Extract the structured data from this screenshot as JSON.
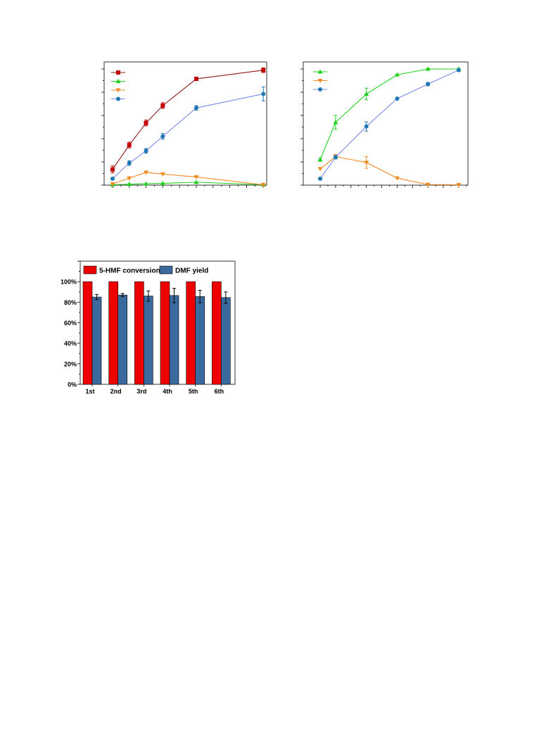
{
  "chart_data": [
    {
      "type": "line",
      "title": "",
      "xlabel": "",
      "ylabel": "",
      "x": [
        0,
        1,
        2,
        3,
        5,
        9
      ],
      "xlim": [
        -0.5,
        9.2
      ],
      "ylim": [
        0,
        100
      ],
      "legend": "top-left",
      "series": [
        {
          "color": "#c00000",
          "line_color": "#8b1a1a",
          "marker": "square",
          "values": [
            13.5,
            34.5,
            53.5,
            68.5,
            91.5,
            99
          ],
          "errors": [
            3,
            2.5,
            2.5,
            2.5,
            1,
            2
          ]
        },
        {
          "color": "#1fd01f",
          "line_color": "#1fd01f",
          "marker": "triangle-up",
          "values": [
            0.3,
            0.8,
            1.2,
            1.5,
            2.5,
            0.3
          ],
          "errors": [
            0,
            0,
            0,
            0,
            0,
            0
          ]
        },
        {
          "color": "#f08a24",
          "line_color": "#f08a24",
          "marker": "triangle-down",
          "values": [
            1,
            6,
            11,
            9.5,
            7,
            0.3
          ],
          "errors": [
            0,
            0,
            0,
            0,
            0,
            0
          ]
        },
        {
          "color": "#1f77b4",
          "line_color": "#7a8ee8",
          "marker": "circle",
          "values": [
            5.5,
            19,
            29.5,
            42,
            66.5,
            78.5
          ],
          "errors": [
            0.5,
            2,
            2,
            2.5,
            2,
            6
          ]
        }
      ]
    },
    {
      "type": "line",
      "title": "",
      "xlabel": "",
      "ylabel": "",
      "x": [
        0,
        0.5,
        1.5,
        2.5,
        3.5,
        4.5
      ],
      "xlim": [
        -0.55,
        4.8
      ],
      "ylim": [
        0,
        100
      ],
      "legend": "top-left",
      "series": [
        {
          "color": "#1fd01f",
          "line_color": "#1fd01f",
          "marker": "triangle-up",
          "values": [
            22,
            54,
            78.5,
            95,
            100,
            100
          ],
          "errors": [
            1.5,
            6,
            5,
            0.5,
            0.5,
            0.5
          ]
        },
        {
          "color": "#f08a24",
          "line_color": "#f08a24",
          "marker": "triangle-down",
          "values": [
            14,
            24.5,
            19.5,
            6,
            0.5,
            0.3
          ],
          "errors": [
            0,
            2,
            5,
            0,
            0,
            0
          ]
        },
        {
          "color": "#1f77b4",
          "line_color": "#7a8ee8",
          "marker": "circle",
          "values": [
            5.5,
            24,
            50.5,
            74.5,
            87,
            99
          ],
          "errors": [
            1,
            1.5,
            4,
            0.5,
            1.5,
            1
          ]
        }
      ]
    },
    {
      "type": "bar",
      "title": "",
      "xlabel": "",
      "ylabel": "",
      "categories": [
        "1st",
        "2nd",
        "3rd",
        "4th",
        "5th",
        "6th"
      ],
      "ylim": [
        0,
        120
      ],
      "yticks": [
        "0%",
        "20%",
        "40%",
        "60%",
        "80%",
        "100%"
      ],
      "legend": "top",
      "series": [
        {
          "name": "5-HMF conversion",
          "color": "#ee0000",
          "values": [
            100,
            100,
            100,
            100,
            100,
            100
          ],
          "errors": [
            0,
            0,
            0,
            0,
            0,
            0
          ]
        },
        {
          "name": "DMF yield",
          "color": "#3b6a9e",
          "values": [
            85,
            87,
            86,
            86.5,
            85.5,
            84.5
          ],
          "errors": [
            2.5,
            1.5,
            5,
            7,
            6,
            5.5
          ]
        }
      ]
    }
  ]
}
